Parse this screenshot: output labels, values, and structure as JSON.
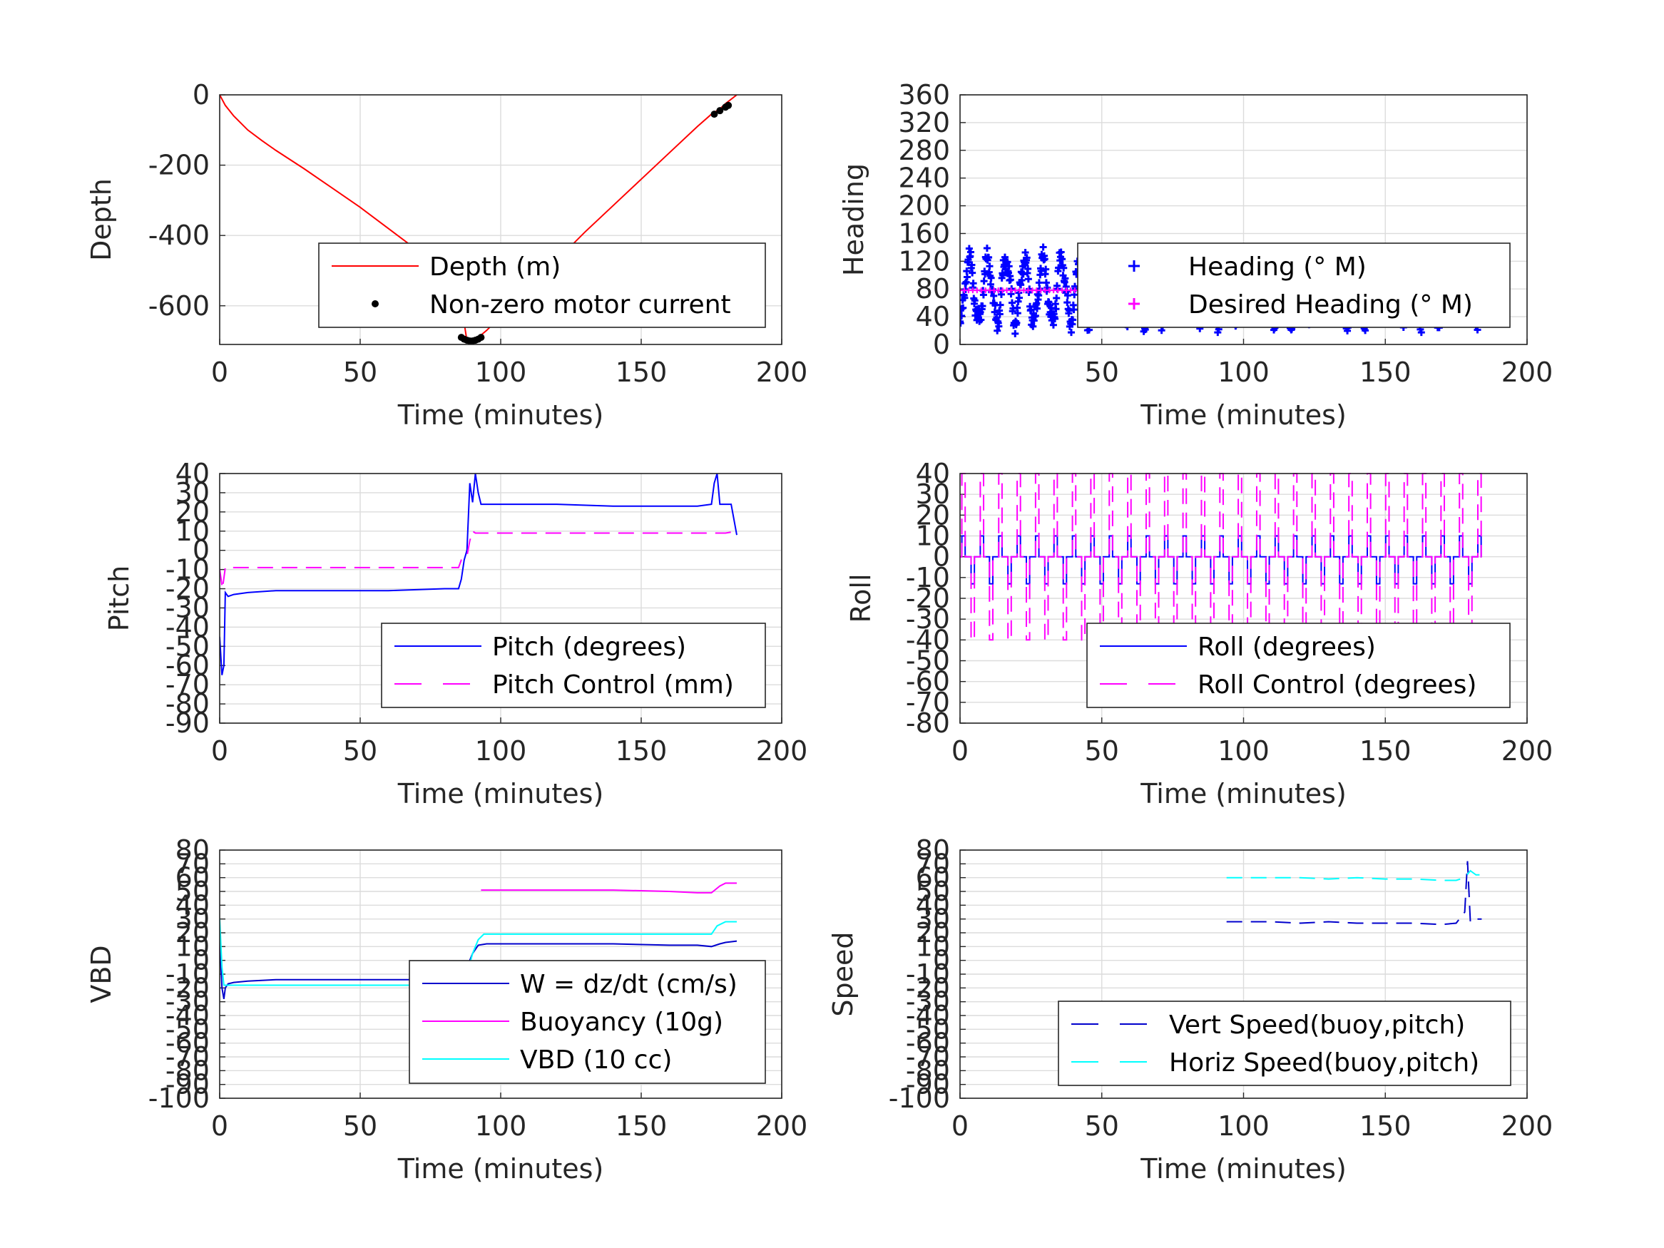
{
  "colors": {
    "red": "#ff0000",
    "blue": "#0000ff",
    "magenta": "#ff00ff",
    "cyan": "#00ffff",
    "darkblue": "#0000cc",
    "black": "#000000"
  },
  "chart_data": [
    {
      "id": "depth",
      "type": "line",
      "xlabel": "Time (minutes)",
      "ylabel": "Depth",
      "xlim": [
        0,
        200
      ],
      "ylim": [
        -710,
        0
      ],
      "xticks": [
        0,
        50,
        100,
        150,
        200
      ],
      "yticks": [
        0,
        -200,
        -400,
        -600
      ],
      "grid": true,
      "legend": "lower-right",
      "series": [
        {
          "name": "Depth (m)",
          "color": "red",
          "style": "solid",
          "x": [
            0,
            2,
            5,
            10,
            15,
            20,
            30,
            40,
            50,
            60,
            70,
            80,
            85,
            88,
            90,
            92,
            95,
            100,
            110,
            120,
            130,
            140,
            150,
            160,
            170,
            175,
            178,
            180,
            184
          ],
          "y": [
            0,
            -30,
            -60,
            -100,
            -130,
            -158,
            -210,
            -265,
            -320,
            -380,
            -440,
            -500,
            -545,
            -700,
            -700,
            -690,
            -670,
            -630,
            -550,
            -470,
            -390,
            -315,
            -240,
            -165,
            -90,
            -55,
            -40,
            -25,
            0
          ]
        },
        {
          "name": "Non-zero motor current",
          "color": "black",
          "style": "dots",
          "x": [
            86,
            87,
            88,
            89,
            90,
            91,
            92,
            93,
            176,
            178,
            180,
            181
          ],
          "y": [
            -690,
            -695,
            -698,
            -700,
            -700,
            -698,
            -695,
            -690,
            -55,
            -45,
            -35,
            -30
          ]
        }
      ]
    },
    {
      "id": "heading",
      "type": "line",
      "xlabel": "Time (minutes)",
      "ylabel": "Heading",
      "xlim": [
        0,
        200
      ],
      "ylim": [
        0,
        360
      ],
      "xticks": [
        0,
        50,
        100,
        150,
        200
      ],
      "yticks": [
        0,
        40,
        80,
        120,
        160,
        200,
        240,
        280,
        320,
        360
      ],
      "grid": true,
      "legend": "center-right",
      "series": [
        {
          "name": "Heading (° M)",
          "color": "blue",
          "style": "markers",
          "oscillation": {
            "center": 78,
            "amplitude": 45,
            "period_min": 6.5,
            "x_start": 0,
            "x_end": 184
          }
        },
        {
          "name": "Desired Heading (° M)",
          "color": "magenta",
          "style": "markers",
          "x": [
            0,
            184
          ],
          "y": [
            78,
            78
          ]
        }
      ]
    },
    {
      "id": "pitch",
      "type": "line",
      "xlabel": "Time (minutes)",
      "ylabel": "Pitch",
      "xlim": [
        0,
        200
      ],
      "ylim": [
        -90,
        40
      ],
      "xticks": [
        0,
        50,
        100,
        150,
        200
      ],
      "yticks": [
        40,
        30,
        20,
        10,
        0,
        -10,
        -20,
        -30,
        -40,
        -50,
        -60,
        -70,
        -80,
        -90
      ],
      "grid": true,
      "legend": "lower-right",
      "series": [
        {
          "name": "Pitch (degrees)",
          "color": "blue",
          "style": "solid",
          "x": [
            0,
            0.8,
            1.5,
            2,
            3,
            5,
            10,
            20,
            40,
            60,
            80,
            85,
            86,
            87,
            88,
            89,
            90,
            91,
            92,
            93,
            95,
            100,
            120,
            140,
            160,
            170,
            175,
            176,
            177,
            178,
            180,
            182,
            184
          ],
          "y": [
            -45,
            -65,
            -60,
            -22,
            -24,
            -23,
            -22,
            -21,
            -21,
            -21,
            -20,
            -20,
            -15,
            -5,
            0,
            35,
            25,
            40,
            30,
            24,
            24,
            24,
            24,
            23,
            23,
            23,
            24,
            35,
            40,
            24,
            24,
            24,
            8
          ]
        },
        {
          "name": "Pitch Control (mm)",
          "color": "magenta",
          "style": "dashed",
          "x": [
            0,
            1,
            2,
            3,
            20,
            40,
            60,
            80,
            85,
            86,
            88,
            89,
            90,
            91,
            100,
            120,
            140,
            160,
            180,
            184
          ],
          "y": [
            -10,
            -20,
            -9,
            -9,
            -9,
            -9,
            -9,
            -9,
            -9,
            -5,
            -3,
            5,
            10,
            9,
            9,
            9,
            9,
            9,
            9,
            10
          ]
        }
      ]
    },
    {
      "id": "roll",
      "type": "line",
      "xlabel": "Time (minutes)",
      "ylabel": "Roll",
      "xlim": [
        0,
        200
      ],
      "ylim": [
        -80,
        40
      ],
      "xticks": [
        0,
        50,
        100,
        150,
        200
      ],
      "yticks": [
        40,
        30,
        20,
        10,
        0,
        -10,
        -20,
        -30,
        -40,
        -50,
        -60,
        -70,
        -80
      ],
      "grid": true,
      "legend": "lower-right",
      "series": [
        {
          "name": "Roll (degrees)",
          "color": "blue",
          "style": "solid",
          "square_wave": {
            "high": 10,
            "mid": 0,
            "low": -13,
            "period_min": 6.5,
            "x_start": 0,
            "x_end": 184
          }
        },
        {
          "name": "Roll Control (degrees)",
          "color": "magenta",
          "style": "dashed",
          "square_wave": {
            "high": 40,
            "mid": 0,
            "low": -40,
            "period_min": 6.5,
            "x_start": 0,
            "x_end": 184
          }
        }
      ]
    },
    {
      "id": "vbd",
      "type": "line",
      "xlabel": "Time (minutes)",
      "ylabel": "VBD",
      "xlim": [
        0,
        200
      ],
      "ylim": [
        -100,
        80
      ],
      "xticks": [
        0,
        50,
        100,
        150,
        200
      ],
      "yticks": [
        80,
        70,
        60,
        50,
        40,
        30,
        20,
        10,
        0,
        -10,
        -20,
        -30,
        -40,
        -50,
        -60,
        -70,
        -80,
        -90,
        -100
      ],
      "grid": true,
      "legend": "lower-right",
      "series": [
        {
          "name": "W = dz/dt (cm/s)",
          "color": "darkblue",
          "style": "solid",
          "x": [
            0,
            0.8,
            1.5,
            2,
            3,
            5,
            10,
            20,
            40,
            60,
            80,
            85,
            87,
            88,
            90,
            92,
            95,
            100,
            120,
            140,
            160,
            170,
            175,
            178,
            180,
            184
          ],
          "y": [
            15,
            -20,
            -28,
            -20,
            -17,
            -16,
            -15,
            -14,
            -14,
            -14,
            -14,
            -14,
            -13,
            -5,
            5,
            11,
            12,
            12,
            12,
            12,
            11,
            11,
            10,
            12,
            13,
            14
          ]
        },
        {
          "name": "Buoyancy (10g)",
          "color": "magenta",
          "style": "solid",
          "x": [
            93,
            100,
            120,
            140,
            160,
            170,
            175,
            178,
            180,
            184
          ],
          "y": [
            51,
            51,
            51,
            51,
            50,
            49,
            49,
            54,
            56,
            56
          ]
        },
        {
          "name": "VBD (10 cc)",
          "color": "cyan",
          "style": "solid",
          "x": [
            0,
            0.8,
            1.5,
            2,
            3,
            10,
            40,
            80,
            85,
            87,
            88,
            90,
            92,
            94,
            100,
            120,
            140,
            160,
            170,
            175,
            177,
            180,
            184
          ],
          "y": [
            30,
            -5,
            -18,
            -18,
            -18,
            -18,
            -18,
            -18,
            -18,
            -18,
            -10,
            5,
            15,
            19,
            19,
            19,
            19,
            19,
            19,
            19,
            25,
            28,
            28
          ]
        }
      ]
    },
    {
      "id": "speed",
      "type": "line",
      "xlabel": "Time (minutes)",
      "ylabel": "Speed",
      "xlim": [
        0,
        200
      ],
      "ylim": [
        -100,
        80
      ],
      "xticks": [
        0,
        50,
        100,
        150,
        200
      ],
      "yticks": [
        80,
        70,
        60,
        50,
        40,
        30,
        20,
        10,
        0,
        -10,
        -20,
        -30,
        -40,
        -50,
        -60,
        -70,
        -80,
        -90,
        -100
      ],
      "grid": true,
      "legend": "lower-right",
      "series": [
        {
          "name": "Vert Speed(buoy,pitch)",
          "color": "darkblue",
          "style": "dashed",
          "x": [
            94,
            100,
            110,
            120,
            130,
            140,
            150,
            160,
            170,
            175,
            178,
            179,
            180,
            181,
            182,
            184
          ],
          "y": [
            28,
            28,
            28,
            27,
            28,
            27,
            27,
            27,
            26,
            27,
            35,
            72,
            28,
            30,
            30,
            30
          ]
        },
        {
          "name": "Horiz Speed(buoy,pitch)",
          "color": "cyan",
          "style": "dashed",
          "x": [
            94,
            100,
            110,
            120,
            130,
            140,
            150,
            160,
            170,
            175,
            178,
            180,
            182,
            184
          ],
          "y": [
            60,
            60,
            60,
            60,
            59,
            60,
            59,
            59,
            58,
            58,
            60,
            65,
            62,
            62
          ]
        }
      ]
    }
  ]
}
